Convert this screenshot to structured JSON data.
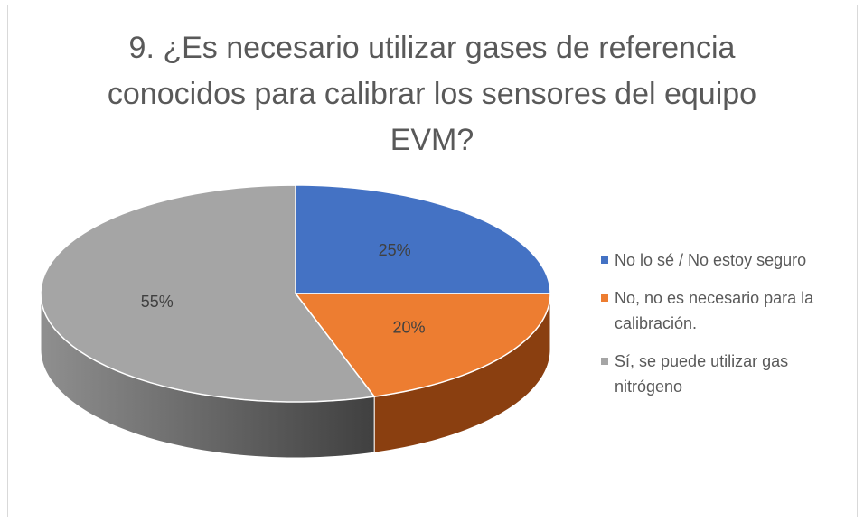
{
  "chart_data": {
    "type": "pie",
    "title": "9. ¿Es necesario utilizar gases de referencia conocidos para calibrar los sensores del equipo EVM?",
    "categories": [
      "No lo sé / No estoy seguro",
      "No, no es necesario para la calibración.",
      "Sí, se puede utilizar gas nitrógeno"
    ],
    "values": [
      25,
      20,
      55
    ],
    "value_labels": [
      "25%",
      "20%",
      "55%"
    ],
    "colors": [
      "#4472c4",
      "#ed7d31",
      "#a5a5a5"
    ],
    "legend": "right"
  }
}
